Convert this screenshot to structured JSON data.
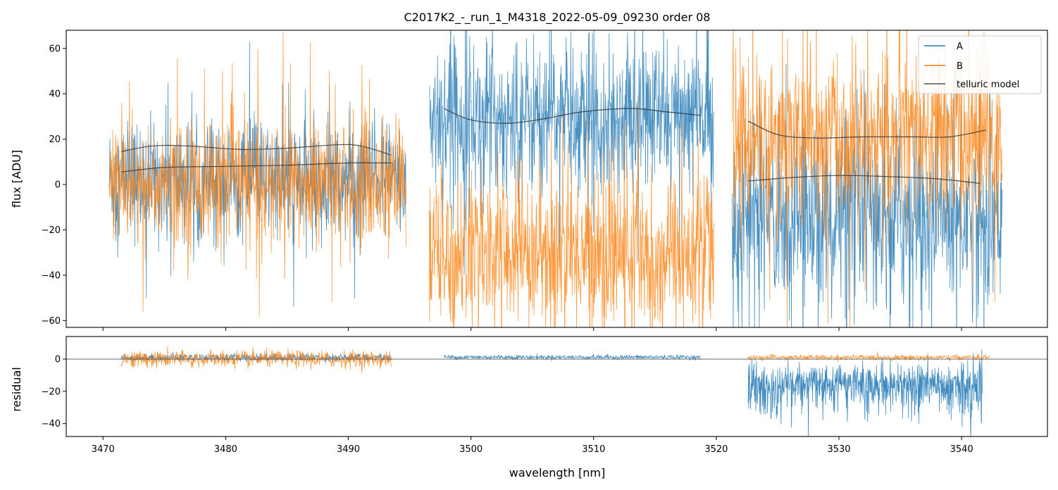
{
  "chart_data": [
    {
      "type": "line",
      "title": "C2017K2_-_run_1_M4318_2022-05-09_09230  order 08",
      "xlabel": "",
      "ylabel": "flux [ADU]",
      "xlim": [
        3467,
        3547
      ],
      "ylim": [
        -63,
        68
      ],
      "yticks": [
        -60,
        -40,
        -20,
        0,
        20,
        40,
        60
      ],
      "ytick_labels": [
        "−60",
        "−40",
        "−20",
        "0",
        "20",
        "40",
        "60"
      ],
      "xticks": [
        3470,
        3480,
        3490,
        3500,
        3510,
        3520,
        3530,
        3540
      ],
      "legend": {
        "placement": "top-right",
        "entries": [
          "A",
          "B",
          "telluric model"
        ]
      },
      "segments": [
        {
          "x_range": [
            3470.5,
            3494.7
          ],
          "A_mean": 2,
          "A_sd": 13,
          "B_mean": 0,
          "B_sd": 14
        },
        {
          "x_range": [
            3496.6,
            3519.8
          ],
          "A_mean": 30,
          "A_sd": 17,
          "B_mean": -30,
          "B_sd": 17
        },
        {
          "x_range": [
            3521.3,
            3543.3
          ],
          "A_mean": -15,
          "A_sd": 20,
          "B_mean": 20,
          "B_sd": 19
        }
      ],
      "telluric_model": [
        {
          "x": [
            3471.5,
            3474,
            3477,
            3481,
            3485,
            3489,
            3491,
            3493.5
          ],
          "y": [
            14.5,
            17,
            17,
            15.5,
            16,
            17.5,
            17,
            13
          ]
        },
        {
          "x": [
            3471.5,
            3475,
            3480,
            3485,
            3490,
            3493.5
          ],
          "y": [
            5.5,
            7.5,
            8,
            8.5,
            9.5,
            9.5
          ]
        },
        {
          "x": [
            3497.8,
            3500,
            3503,
            3506,
            3509,
            3513,
            3516,
            3518.7
          ],
          "y": [
            33.5,
            28.5,
            27,
            29,
            32,
            33.5,
            32,
            30.5
          ]
        },
        {
          "x": [
            3522.6,
            3525,
            3528,
            3532,
            3536,
            3539,
            3542
          ],
          "y": [
            28,
            22,
            20.5,
            21,
            21,
            21,
            24
          ]
        },
        {
          "x": [
            3522.6,
            3526,
            3530,
            3534,
            3538,
            3541.5
          ],
          "y": [
            1.5,
            3,
            4,
            3.5,
            2.5,
            0.5
          ]
        }
      ],
      "series": [
        {
          "name": "A",
          "color": "#1f77b4"
        },
        {
          "name": "B",
          "color": "#ff7f0e"
        },
        {
          "name": "telluric model",
          "color": "#333333"
        }
      ]
    },
    {
      "type": "line",
      "title": "",
      "xlabel": "wavelength [nm]",
      "ylabel": "residual",
      "xlim": [
        3467,
        3547
      ],
      "ylim": [
        -48,
        14
      ],
      "yticks": [
        -40,
        -20,
        0
      ],
      "ytick_labels": [
        "−40",
        "−20",
        "0"
      ],
      "xticks": [
        3470,
        3480,
        3490,
        3500,
        3510,
        3520,
        3530,
        3540
      ],
      "xtick_labels": [
        "3470",
        "3480",
        "3490",
        "3500",
        "3510",
        "3520",
        "3530",
        "3540"
      ],
      "zero_line": 0,
      "residual_segments": [
        {
          "series": "A",
          "x_range": [
            3471.5,
            3493.5
          ],
          "mean": 1,
          "sd": 1.2
        },
        {
          "series": "B",
          "x_range": [
            3471.5,
            3493.5
          ],
          "mean": 0,
          "sd": 2.6
        },
        {
          "series": "A",
          "x_range": [
            3497.8,
            3518.7
          ],
          "mean": 1.2,
          "sd": 0.7
        },
        {
          "series": "A",
          "x_range": [
            3522.6,
            3541.7
          ],
          "mean": -12,
          "sd": 11
        },
        {
          "series": "B",
          "x_range": [
            3522.6,
            3542.3
          ],
          "mean": 1,
          "sd": 0.8
        }
      ]
    }
  ]
}
